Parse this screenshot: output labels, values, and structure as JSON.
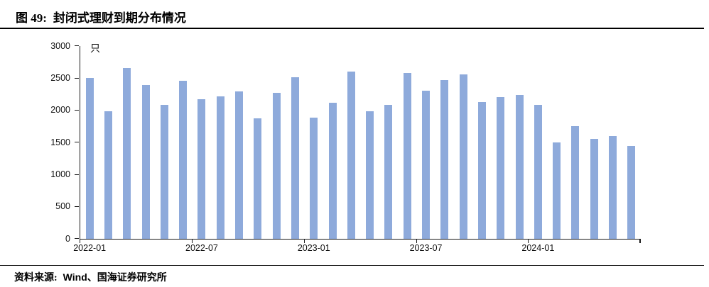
{
  "header": {
    "figure_label": "图 49:",
    "title": "封闭式理财到期分布情况"
  },
  "footer": {
    "source_label": "资料来源:",
    "source_text": "Wind、国海证券研究所"
  },
  "colors": {
    "bar": "#8EAADB",
    "axis": "#1a1a1a",
    "text": "#111111"
  },
  "chart_data": {
    "type": "bar",
    "title": "封闭式理财到期分布情况",
    "unit_label": "只",
    "xlabel": "",
    "ylabel": "只",
    "ylim": [
      0,
      3000
    ],
    "yticks": [
      0,
      500,
      1000,
      1500,
      2000,
      2500,
      3000
    ],
    "grid": "off",
    "legend": "none",
    "bar_color": "#8EAADB",
    "categories": [
      "2022-01",
      "2022-02",
      "2022-03",
      "2022-04",
      "2022-05",
      "2022-06",
      "2022-07",
      "2022-08",
      "2022-09",
      "2022-10",
      "2022-11",
      "2022-12",
      "2023-01",
      "2023-02",
      "2023-03",
      "2023-04",
      "2023-05",
      "2023-06",
      "2023-07",
      "2023-08",
      "2023-09",
      "2023-10",
      "2023-11",
      "2023-12",
      "2024-01",
      "2024-02",
      "2024-03",
      "2024-04",
      "2024-05",
      "2024-06"
    ],
    "values": [
      2500,
      1990,
      2660,
      2390,
      2080,
      2460,
      2170,
      2220,
      2290,
      1870,
      2270,
      2520,
      1890,
      2120,
      2600,
      1980,
      2080,
      2580,
      2300,
      2470,
      2560,
      2130,
      2210,
      2240,
      2090,
      1500,
      1750,
      1560,
      1600,
      1440
    ],
    "xtick_labels": [
      "2022-01",
      "2022-07",
      "2023-01",
      "2023-07",
      "2024-01"
    ],
    "xtick_label_indices": [
      0,
      6,
      12,
      18,
      24
    ],
    "xtick_boundary_interval": 6
  }
}
